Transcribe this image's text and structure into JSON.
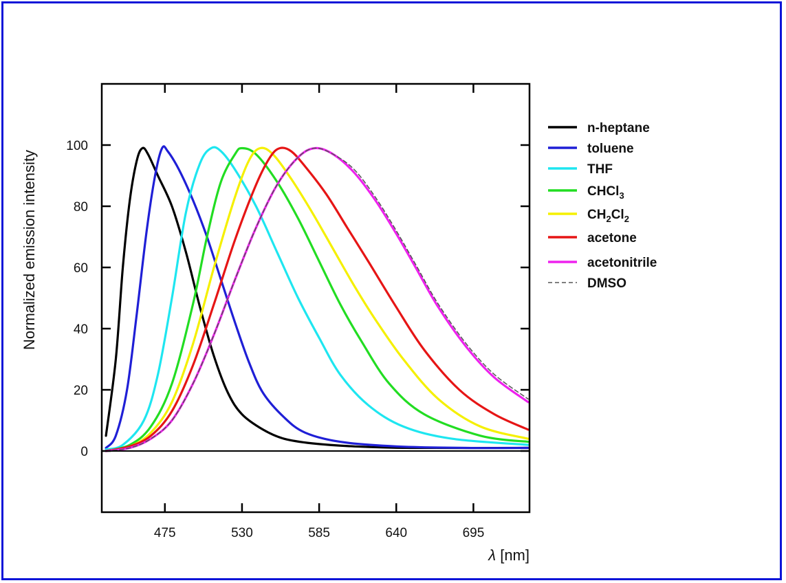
{
  "chart_data": {
    "type": "line",
    "title": "",
    "xlabel": "λ [nm]",
    "ylabel": "Normalized emission intensity",
    "xlim": [
      430,
      735
    ],
    "ylim": [
      -20,
      120
    ],
    "x_ticks": [
      475,
      530,
      585,
      640,
      695
    ],
    "y_ticks": [
      0,
      20,
      40,
      60,
      80,
      100
    ],
    "grid": false,
    "legend_position": "right",
    "series": [
      {
        "name": "n-heptane",
        "color": "#000000",
        "dashed": false,
        "points": [
          [
            433,
            5
          ],
          [
            440,
            30
          ],
          [
            445,
            60
          ],
          [
            450,
            82
          ],
          [
            455,
            95
          ],
          [
            459,
            99
          ],
          [
            463,
            97
          ],
          [
            470,
            90
          ],
          [
            480,
            80
          ],
          [
            490,
            65
          ],
          [
            500,
            47
          ],
          [
            510,
            31
          ],
          [
            520,
            19
          ],
          [
            530,
            12
          ],
          [
            545,
            7
          ],
          [
            560,
            4
          ],
          [
            580,
            2.5
          ],
          [
            610,
            1.5
          ],
          [
            650,
            1
          ],
          [
            734,
            1
          ]
        ]
      },
      {
        "name": "toluene",
        "color": "#1f1fd6",
        "dashed": false,
        "points": [
          [
            433,
            1
          ],
          [
            440,
            5
          ],
          [
            448,
            20
          ],
          [
            455,
            45
          ],
          [
            462,
            72
          ],
          [
            468,
            90
          ],
          [
            473,
            99
          ],
          [
            477,
            98
          ],
          [
            485,
            92
          ],
          [
            495,
            82
          ],
          [
            505,
            70
          ],
          [
            515,
            56
          ],
          [
            525,
            42
          ],
          [
            535,
            29
          ],
          [
            545,
            19
          ],
          [
            560,
            11
          ],
          [
            575,
            6
          ],
          [
            600,
            3
          ],
          [
            640,
            1.5
          ],
          [
            690,
            1
          ],
          [
            734,
            1
          ]
        ]
      },
      {
        "name": "THF",
        "color": "#1ee6f0",
        "dashed": false,
        "points": [
          [
            433,
            0.5
          ],
          [
            445,
            2
          ],
          [
            460,
            10
          ],
          [
            470,
            25
          ],
          [
            480,
            50
          ],
          [
            490,
            78
          ],
          [
            500,
            94
          ],
          [
            508,
            99
          ],
          [
            515,
            98
          ],
          [
            525,
            92
          ],
          [
            540,
            80
          ],
          [
            555,
            65
          ],
          [
            570,
            50
          ],
          [
            585,
            37
          ],
          [
            600,
            25
          ],
          [
            620,
            15
          ],
          [
            645,
            8
          ],
          [
            680,
            4
          ],
          [
            734,
            2
          ]
        ]
      },
      {
        "name": "CHCl₃",
        "color": "#22dd22",
        "dashed": false,
        "points": [
          [
            433,
            0
          ],
          [
            450,
            2
          ],
          [
            465,
            8
          ],
          [
            480,
            22
          ],
          [
            495,
            48
          ],
          [
            505,
            70
          ],
          [
            515,
            88
          ],
          [
            525,
            97
          ],
          [
            530,
            99
          ],
          [
            540,
            97
          ],
          [
            555,
            88
          ],
          [
            570,
            76
          ],
          [
            585,
            62
          ],
          [
            600,
            48
          ],
          [
            615,
            36
          ],
          [
            635,
            22
          ],
          [
            660,
            12
          ],
          [
            700,
            5
          ],
          [
            734,
            3
          ]
        ]
      },
      {
        "name": "CH₂Cl₂",
        "color": "#f5f000",
        "dashed": false,
        "points": [
          [
            433,
            0
          ],
          [
            450,
            1.5
          ],
          [
            465,
            6
          ],
          [
            480,
            16
          ],
          [
            495,
            35
          ],
          [
            510,
            60
          ],
          [
            525,
            83
          ],
          [
            535,
            95
          ],
          [
            543,
            99
          ],
          [
            552,
            97
          ],
          [
            565,
            89
          ],
          [
            580,
            78
          ],
          [
            595,
            66
          ],
          [
            610,
            54
          ],
          [
            625,
            43
          ],
          [
            645,
            30
          ],
          [
            670,
            17
          ],
          [
            700,
            8
          ],
          [
            734,
            4
          ]
        ]
      },
      {
        "name": "acetone",
        "color": "#e61515",
        "dashed": false,
        "points": [
          [
            433,
            0
          ],
          [
            450,
            1.5
          ],
          [
            465,
            5
          ],
          [
            480,
            13
          ],
          [
            495,
            28
          ],
          [
            510,
            48
          ],
          [
            525,
            69
          ],
          [
            540,
            87
          ],
          [
            550,
            96
          ],
          [
            557,
            99
          ],
          [
            565,
            98
          ],
          [
            575,
            93
          ],
          [
            590,
            84
          ],
          [
            605,
            73
          ],
          [
            620,
            62
          ],
          [
            640,
            47
          ],
          [
            660,
            33
          ],
          [
            685,
            20
          ],
          [
            710,
            12
          ],
          [
            734,
            7
          ]
        ]
      },
      {
        "name": "acetonitrile",
        "color": "#ee22ee",
        "dashed": false,
        "points": [
          [
            433,
            0
          ],
          [
            450,
            1
          ],
          [
            465,
            4
          ],
          [
            480,
            10
          ],
          [
            495,
            22
          ],
          [
            510,
            38
          ],
          [
            525,
            56
          ],
          [
            540,
            73
          ],
          [
            555,
            87
          ],
          [
            570,
            96
          ],
          [
            582,
            99
          ],
          [
            595,
            97
          ],
          [
            610,
            91
          ],
          [
            625,
            82
          ],
          [
            640,
            71
          ],
          [
            655,
            59
          ],
          [
            670,
            47
          ],
          [
            690,
            34
          ],
          [
            710,
            24
          ],
          [
            734,
            16
          ]
        ]
      },
      {
        "name": "DMSO",
        "color": "#555555",
        "dashed": true,
        "points": [
          [
            433,
            0
          ],
          [
            450,
            1
          ],
          [
            465,
            4
          ],
          [
            480,
            10
          ],
          [
            495,
            22
          ],
          [
            510,
            38
          ],
          [
            525,
            56
          ],
          [
            540,
            73
          ],
          [
            555,
            87
          ],
          [
            570,
            96
          ],
          [
            582,
            99
          ],
          [
            595,
            97
          ],
          [
            610,
            92
          ],
          [
            625,
            83
          ],
          [
            640,
            72
          ],
          [
            655,
            60
          ],
          [
            670,
            48
          ],
          [
            690,
            35
          ],
          [
            710,
            25
          ],
          [
            734,
            17
          ]
        ]
      }
    ]
  }
}
